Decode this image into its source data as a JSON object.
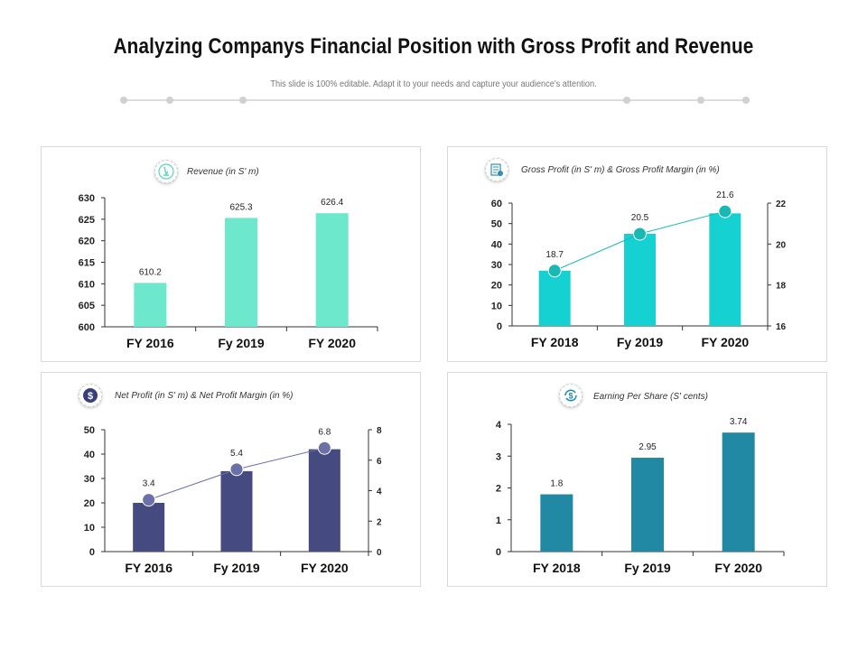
{
  "page": {
    "title": "Analyzing Companys Financial Position with Gross Profit and Revenue",
    "subtitle": "This slide is 100% editable. Adapt it to your needs and capture your audience's attention."
  },
  "icons": [
    "revenue-icon",
    "invoice-icon",
    "dollar-coin-icon",
    "dollar-cycle-icon"
  ],
  "colors": {
    "revenue": "#6ee8cd",
    "gross_profit": "#16d1d1",
    "net_profit": "#454a80",
    "eps": "#2289a5",
    "gross_margin_marker": "#1ab8b4",
    "net_margin_marker": "#6b70a8"
  },
  "chart_data": [
    {
      "type": "bar",
      "title": "Revenue (in S' m)",
      "categories": [
        "FY 2016",
        "Fy 2019",
        "FY 2020"
      ],
      "values": [
        610.2,
        625.3,
        626.4
      ],
      "data_labels": [
        "610.2",
        "625.3",
        "626.4"
      ],
      "ylim": [
        600,
        630
      ],
      "yticks": [
        "600",
        "605",
        "610",
        "615",
        "620",
        "625",
        "630"
      ]
    },
    {
      "type": "bar",
      "title": "Gross Profit (in S' m) & Gross Profit Margin (in %)",
      "categories": [
        "FY 2018",
        "Fy 2019",
        "FY 2020"
      ],
      "series": [
        {
          "values": [
            27,
            45,
            55
          ]
        },
        {
          "values": [
            18.7,
            20.5,
            21.6
          ],
          "data_labels": [
            "18.7",
            "20.5",
            "21.6"
          ]
        }
      ],
      "ylim": [
        0,
        60
      ],
      "yticks": [
        "0",
        "10",
        "20",
        "30",
        "40",
        "50",
        "60"
      ],
      "y2lim": [
        16,
        22
      ],
      "y2ticks": [
        "16",
        "18",
        "20",
        "22"
      ]
    },
    {
      "type": "bar",
      "title": "Net Profit (in S' m) & Net Profit Margin (in %)",
      "categories": [
        "FY 2016",
        "Fy 2019",
        "FY 2020"
      ],
      "series": [
        {
          "values": [
            20,
            33,
            42
          ]
        },
        {
          "values": [
            3.4,
            5.4,
            6.8
          ],
          "data_labels": [
            "3.4",
            "5.4",
            "6.8"
          ]
        }
      ],
      "ylim": [
        0,
        50
      ],
      "yticks": [
        "0",
        "10",
        "20",
        "30",
        "40",
        "50"
      ],
      "y2lim": [
        0,
        8
      ],
      "y2ticks": [
        "0",
        "2",
        "4",
        "6",
        "8"
      ]
    },
    {
      "type": "bar",
      "title": "Earning Per Share (S' cents)",
      "categories": [
        "FY 2018",
        "Fy 2019",
        "FY 2020"
      ],
      "values": [
        1.8,
        2.95,
        3.74
      ],
      "data_labels": [
        "1.8",
        "2.95",
        "3.74"
      ],
      "ylim": [
        0,
        4
      ],
      "yticks": [
        "0",
        "1",
        "2",
        "3",
        "4"
      ]
    }
  ]
}
